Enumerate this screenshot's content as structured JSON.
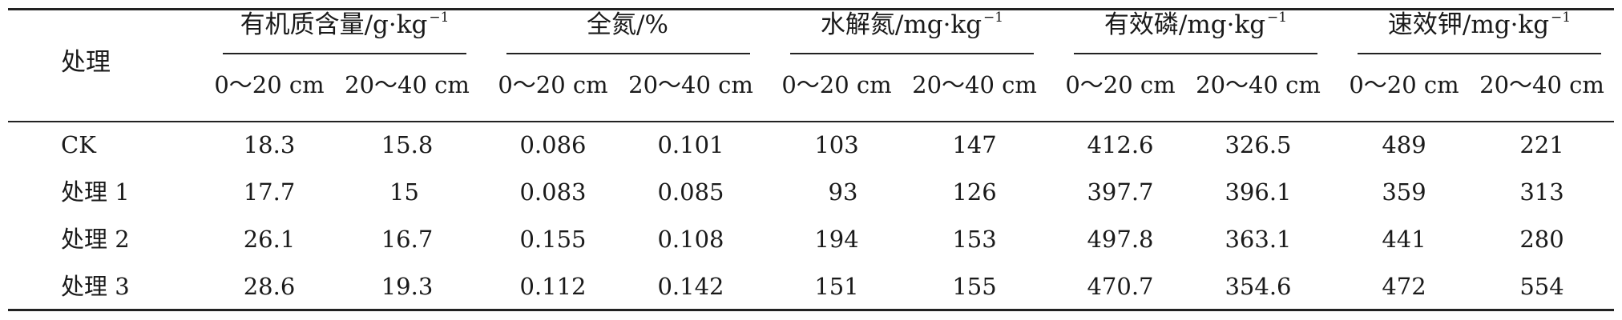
{
  "table": {
    "row_header": "处理",
    "groups": [
      {
        "label": "有机质含量/g·kg",
        "sup": "−1"
      },
      {
        "label": "全氮/%",
        "sup": ""
      },
      {
        "label": "水解氮/mg·kg",
        "sup": "−1"
      },
      {
        "label": "有效磷/mg·kg",
        "sup": "−1"
      },
      {
        "label": "速效钾/mg·kg",
        "sup": "−1"
      }
    ],
    "depths": [
      "0～20 cm",
      "20～40 cm"
    ],
    "rows": [
      {
        "label": "CK",
        "values": [
          "18.3",
          "15.8",
          "0.086",
          "0.101",
          "103",
          "147",
          "412.6",
          "326.5",
          "489",
          "221"
        ]
      },
      {
        "label": "处理 1",
        "values": [
          "17.7",
          "15",
          "0.083",
          "0.085",
          "93",
          "126",
          "397.7",
          "396.1",
          "359",
          "313"
        ]
      },
      {
        "label": "处理 2",
        "values": [
          "26.1",
          "16.7",
          "0.155",
          "0.108",
          "194",
          "153",
          "497.8",
          "363.1",
          "441",
          "280"
        ]
      },
      {
        "label": "处理 3",
        "values": [
          "28.6",
          "19.3",
          "0.112",
          "0.142",
          "151",
          "155",
          "470.7",
          "354.6",
          "472",
          "554"
        ]
      }
    ]
  }
}
